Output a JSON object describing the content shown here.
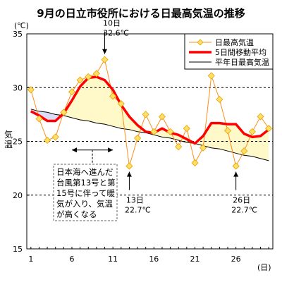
{
  "chart_data": {
    "type": "line",
    "title": "9月の日立市役所における日最高気温の推移",
    "ylabel": "気温",
    "y_unit": "(℃)",
    "x_unit": "(日)",
    "ylim": [
      15,
      35
    ],
    "xlim": [
      1,
      30
    ],
    "y_ticks": [
      15,
      20,
      25,
      30,
      35
    ],
    "x_ticks": [
      1,
      6,
      11,
      16,
      21,
      26
    ],
    "dashed_gridlines_at": [
      20,
      25,
      30
    ],
    "legend_position": "top-right",
    "x": [
      1,
      2,
      3,
      4,
      5,
      6,
      7,
      8,
      9,
      10,
      11,
      12,
      13,
      14,
      15,
      16,
      17,
      18,
      19,
      20,
      21,
      22,
      23,
      24,
      25,
      26,
      27,
      28,
      29,
      30
    ],
    "series": [
      {
        "name": "日最高気温",
        "color": "#ff8c1a",
        "marker_color": "#ffe066",
        "values": [
          29.8,
          27.1,
          25.1,
          25.4,
          27.7,
          29.6,
          30.7,
          31.0,
          31.3,
          32.6,
          29.2,
          28.5,
          22.7,
          25.3,
          27.5,
          25.9,
          27.3,
          25.9,
          24.5,
          26.2,
          23.0,
          24.4,
          31.1,
          28.9,
          26.0,
          22.7,
          24.1,
          25.9,
          27.3,
          26.2
        ]
      },
      {
        "name": "5日間移動平均",
        "color": "#ff0000",
        "values": [
          27.8,
          27.4,
          26.9,
          26.9,
          27.6,
          28.8,
          30.1,
          30.9,
          31.0,
          30.7,
          29.8,
          28.4,
          27.3,
          26.5,
          25.9,
          25.8,
          26.2,
          25.8,
          25.6,
          25.2,
          24.8,
          25.5,
          26.7,
          26.7,
          26.6,
          26.6,
          25.7,
          25.4,
          25.5,
          26.1
        ]
      },
      {
        "name": "平年日最高気温",
        "color": "#000000",
        "values": [
          28.0,
          27.8,
          27.7,
          27.5,
          27.4,
          27.2,
          27.0,
          26.9,
          26.7,
          26.6,
          26.4,
          26.2,
          26.1,
          25.9,
          25.8,
          25.6,
          25.4,
          25.3,
          25.1,
          24.9,
          24.8,
          24.6,
          24.4,
          24.3,
          24.1,
          23.9,
          23.7,
          23.6,
          23.4,
          23.2
        ]
      }
    ],
    "annotations": [
      {
        "id": "peak",
        "lines": [
          "10日",
          "32.6℃"
        ],
        "x": 10,
        "value": 32.6,
        "direction": "down"
      },
      {
        "id": "low13",
        "lines": [
          "13日",
          "22.7℃"
        ],
        "x": 13,
        "value": 22.7,
        "direction": "up"
      },
      {
        "id": "low26",
        "lines": [
          "26日",
          "22.7℃"
        ],
        "x": 26,
        "value": 22.7,
        "direction": "up"
      }
    ],
    "period_note": {
      "x_start": 6,
      "x_end": 11,
      "lines": [
        "日本海へ進んだ",
        "台風第13号と第",
        "15号に伴って暖",
        "気が入り、気温",
        "が高くなる"
      ]
    }
  }
}
